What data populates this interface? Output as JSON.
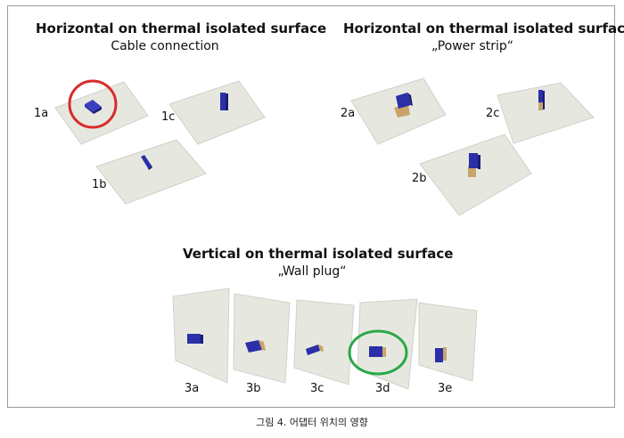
{
  "sections": {
    "horizontal_cable": {
      "title": "Horizontal on thermal isolated surface",
      "subtitle": "Cable connection",
      "labels": [
        "1a",
        "1b",
        "1c"
      ]
    },
    "horizontal_power_strip": {
      "title": "Horizontal on thermal isolated surface",
      "subtitle": "„Power strip“",
      "labels": [
        "2a",
        "2b",
        "2c"
      ]
    },
    "vertical_wall_plug": {
      "title": "Vertical on thermal isolated surface",
      "subtitle": "„Wall plug“",
      "labels": [
        "3a",
        "3b",
        "3c",
        "3d",
        "3e"
      ]
    }
  },
  "caption": "그림 4. 어댑터 위치의 영향",
  "colors": {
    "surface": "#e6e8df",
    "surface_edge": "#cfd1c8",
    "adapter": "#2b2fa8",
    "adapter_dark": "#1b1e73",
    "plug_tan": "#c9a46a",
    "highlight_red": "#d92b2b",
    "highlight_green": "#2aa84a"
  },
  "highlights": [
    {
      "target": "1a",
      "color_name": "red"
    },
    {
      "target": "3d",
      "color_name": "green"
    }
  ]
}
